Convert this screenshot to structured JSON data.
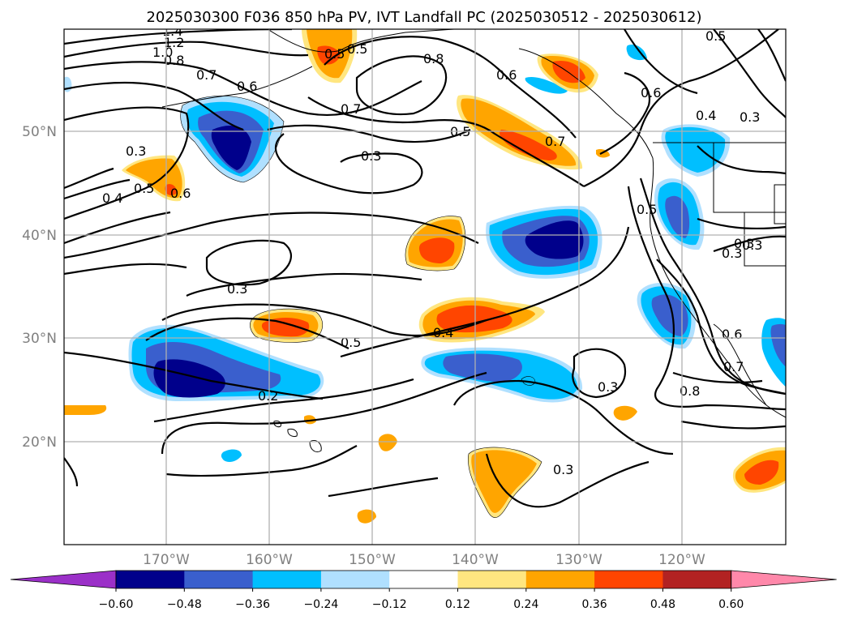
{
  "title": "2025030300 F036 850 hPa PV, IVT Landfall PC (2025030512 - 2025030612)",
  "lat_labels": [
    "50°N",
    "40°N",
    "30°N",
    "20°N"
  ],
  "lon_labels": [
    "170°W",
    "160°W",
    "150°W",
    "140°W",
    "130°W",
    "120°W"
  ],
  "colorbar": {
    "ticks": [
      "−0.60",
      "−0.48",
      "−0.36",
      "−0.24",
      "−0.12",
      "0.12",
      "0.24",
      "0.36",
      "0.48",
      "0.60"
    ],
    "colors": [
      "#9b30c8",
      "#00008b",
      "#3a5fcd",
      "#00bfff",
      "#b0e0ff",
      "#ffffff",
      "#ffe680",
      "#ffa500",
      "#ff4500",
      "#b22222",
      "#ff88aa"
    ]
  },
  "contour_labels": [
    "1.4",
    "1.2",
    "1.0",
    "0.8",
    "0.7",
    "0.6",
    "0.5",
    "0.8",
    "0.6",
    "0.5",
    "0.7",
    "0.3",
    "0.5",
    "0.7",
    "0.3",
    "0.4",
    "0.5",
    "0.6",
    "0.5",
    "0.3",
    "0.3",
    "0.5",
    "0.4",
    "0.2",
    "0.3",
    "0.3",
    "0.8",
    "0.6",
    "0.7",
    "0.3",
    "0.3",
    "0.4",
    "0.5",
    "0.6",
    "0.3"
  ],
  "colors": {
    "pos_light": "#ffe680",
    "pos_mid": "#ffa500",
    "pos_strong": "#ff4500",
    "neg_light": "#b0e0ff",
    "neg_mid": "#00bfff",
    "neg_strong": "#3a5fcd",
    "neg_max": "#00008b"
  }
}
